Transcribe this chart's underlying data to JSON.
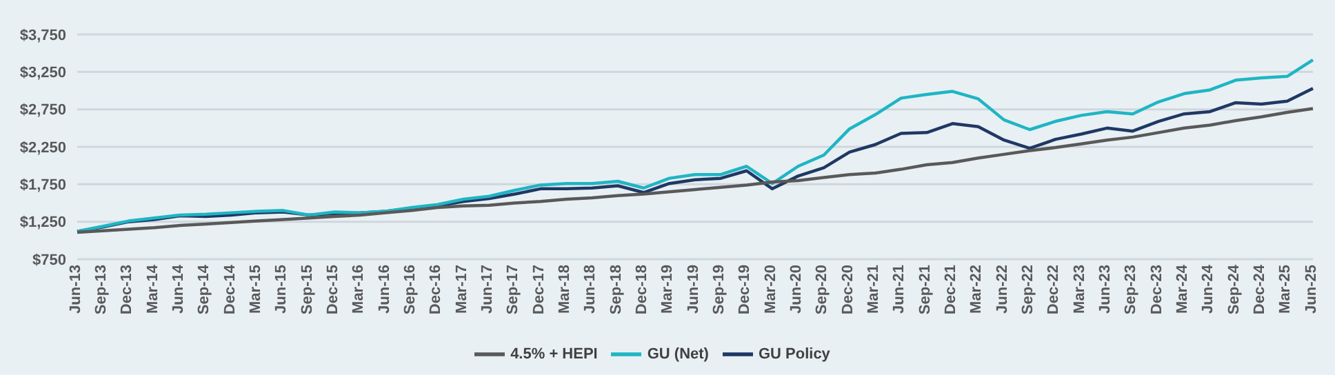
{
  "chart_data": {
    "type": "line",
    "categories": [
      "Jun-13",
      "Sep-13",
      "Dec-13",
      "Mar-14",
      "Jun-14",
      "Sep-14",
      "Dec-14",
      "Mar-15",
      "Jun-15",
      "Sep-15",
      "Dec-15",
      "Mar-16",
      "Jun-16",
      "Sep-16",
      "Dec-16",
      "Mar-17",
      "Jun-17",
      "Sep-17",
      "Dec-17",
      "Mar-18",
      "Jun-18",
      "Sep-18",
      "Dec-18",
      "Mar-19",
      "Jun-19",
      "Sep-19",
      "Dec-19",
      "Mar-20",
      "Jun-20",
      "Sep-20",
      "Dec-20",
      "Mar-21",
      "Jun-21",
      "Sep-21",
      "Dec-21",
      "Mar-22",
      "Jun-22",
      "Sep-22",
      "Dec-22",
      "Mar-23",
      "Jun-23",
      "Sep-23",
      "Dec-23",
      "Mar-24",
      "Jun-24",
      "Sep-24",
      "Dec-24",
      "Mar-25",
      "Jun-25"
    ],
    "series": [
      {
        "name": "GU Policy",
        "color": "#1f3864",
        "values": [
          1120,
          1180,
          1250,
          1280,
          1330,
          1320,
          1340,
          1370,
          1380,
          1340,
          1360,
          1370,
          1390,
          1430,
          1460,
          1520,
          1560,
          1620,
          1690,
          1690,
          1700,
          1730,
          1640,
          1760,
          1810,
          1830,
          1930,
          1690,
          1860,
          1970,
          2180,
          2280,
          2430,
          2440,
          2560,
          2520,
          2340,
          2230,
          2350,
          2420,
          2500,
          2460,
          2590,
          2690,
          2720,
          2840,
          2820,
          2860,
          3030
        ]
      },
      {
        "name": "GU (Net)",
        "color": "#1fb5c4",
        "values": [
          1120,
          1190,
          1260,
          1300,
          1340,
          1350,
          1370,
          1390,
          1400,
          1340,
          1380,
          1370,
          1390,
          1440,
          1480,
          1550,
          1590,
          1670,
          1740,
          1760,
          1760,
          1790,
          1700,
          1830,
          1880,
          1880,
          1990,
          1760,
          1990,
          2140,
          2490,
          2680,
          2900,
          2950,
          2990,
          2890,
          2610,
          2480,
          2590,
          2670,
          2720,
          2690,
          2850,
          2960,
          3010,
          3140,
          3170,
          3190,
          3410
        ]
      },
      {
        "name": "4.5% + HEPI",
        "color": "#595959",
        "values": [
          1110,
          1130,
          1150,
          1170,
          1200,
          1220,
          1240,
          1260,
          1280,
          1300,
          1320,
          1340,
          1370,
          1400,
          1440,
          1460,
          1470,
          1500,
          1520,
          1550,
          1570,
          1600,
          1620,
          1650,
          1680,
          1710,
          1740,
          1780,
          1800,
          1840,
          1880,
          1900,
          1950,
          2010,
          2040,
          2100,
          2150,
          2200,
          2240,
          2290,
          2340,
          2380,
          2440,
          2500,
          2540,
          2600,
          2650,
          2710,
          2760
        ]
      }
    ],
    "ylim": [
      750,
      3750
    ],
    "yticks": [
      {
        "value": 750,
        "label": "$750"
      },
      {
        "value": 1250,
        "label": "$1,250"
      },
      {
        "value": 1750,
        "label": "$1,750"
      },
      {
        "value": 2250,
        "label": "$2,250"
      },
      {
        "value": 2750,
        "label": "$2,750"
      },
      {
        "value": 3250,
        "label": "$3,250"
      },
      {
        "value": 3750,
        "label": "$3,750"
      }
    ],
    "grid": "y",
    "legend": "bottom",
    "marker": "none",
    "line_style": "solid"
  }
}
